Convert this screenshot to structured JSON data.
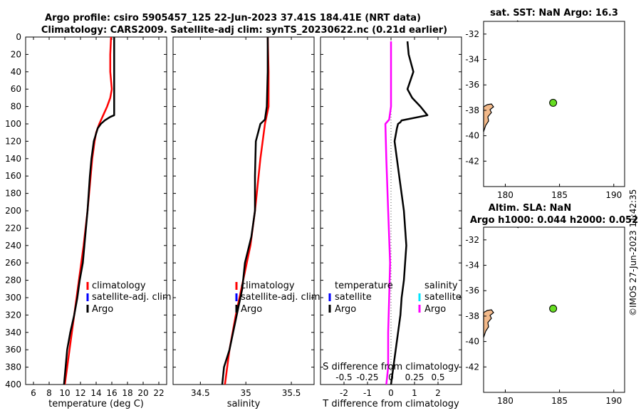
{
  "chart_data": [
    {
      "type": "line",
      "title": [
        "Argo profile: csiro 5905457_125 22-Jun-2023 37.41S 184.41E (NRT data)",
        "Climatology: CARS2009. Satellite-adj clim: synTS_20230622.nc (0.21d earlier)"
      ],
      "xlabel": "temperature (deg C)",
      "xlim": [
        5,
        23
      ],
      "ylim": [
        0,
        400
      ],
      "xticks": [
        6,
        8,
        10,
        12,
        14,
        16,
        18,
        20,
        22
      ],
      "yticks": [
        0,
        20,
        40,
        60,
        80,
        100,
        120,
        140,
        160,
        180,
        200,
        220,
        240,
        260,
        280,
        300,
        320,
        340,
        360,
        380,
        400
      ],
      "legend": [
        "climatology",
        "satellite-adj. clim",
        "Argo"
      ],
      "colors": {
        "climatology": "#ff0000",
        "satellite": "#0000ff",
        "argo": "#000000"
      },
      "series": [
        {
          "name": "climatology",
          "depth": [
            0,
            20,
            40,
            60,
            70,
            80,
            90,
            100,
            110,
            120,
            140,
            160,
            200,
            240,
            280,
            320,
            360,
            400
          ],
          "values": [
            15.9,
            15.8,
            15.8,
            16.0,
            15.8,
            15.4,
            14.9,
            14.4,
            14.0,
            13.8,
            13.5,
            13.3,
            12.9,
            12.4,
            11.8,
            11.2,
            10.6,
            10.0
          ]
        },
        {
          "name": "Argo",
          "depth": [
            0,
            20,
            40,
            60,
            80,
            90,
            92,
            96,
            100,
            105,
            120,
            140,
            160,
            200,
            240,
            260,
            280,
            300,
            320,
            340,
            360,
            380,
            400
          ],
          "values": [
            16.3,
            16.3,
            16.3,
            16.3,
            16.3,
            16.3,
            15.8,
            15.1,
            14.6,
            14.2,
            13.7,
            13.4,
            13.2,
            12.9,
            12.5,
            12.3,
            11.9,
            11.6,
            11.2,
            10.7,
            10.3,
            10.1,
            9.9
          ]
        }
      ]
    },
    {
      "type": "line",
      "xlabel": "salinity",
      "xlim": [
        34.2,
        35.75
      ],
      "ylim": [
        0,
        400
      ],
      "xticks": [
        34.5,
        35,
        35.5
      ],
      "xtick_labels": [
        "34.5",
        "35",
        "35.5"
      ],
      "legend": [
        "climatology",
        "satellite-adj. clim",
        "Argo"
      ],
      "series": [
        {
          "name": "climatology",
          "depth": [
            0,
            40,
            80,
            100,
            140,
            200,
            240,
            280,
            320,
            360,
            400
          ],
          "values": [
            35.24,
            35.25,
            35.25,
            35.21,
            35.16,
            35.1,
            35.05,
            34.97,
            34.89,
            34.82,
            34.77
          ]
        },
        {
          "name": "Argo",
          "depth": [
            0,
            40,
            80,
            95,
            100,
            120,
            160,
            200,
            230,
            260,
            290,
            320,
            340,
            360,
            380,
            400
          ],
          "values": [
            35.24,
            35.24,
            35.23,
            35.21,
            35.16,
            35.11,
            35.1,
            35.1,
            35.06,
            34.99,
            34.96,
            34.9,
            34.86,
            34.82,
            34.76,
            34.74
          ]
        }
      ]
    },
    {
      "type": "line",
      "xlabel": "T difference from climatology",
      "top_axis_label": "S difference from climatology",
      "xlim": [
        -3,
        3
      ],
      "ylim": [
        0,
        400
      ],
      "xticks": [
        -2,
        -1,
        0,
        1,
        2
      ],
      "top_xticks": [
        -0.5,
        -0.25,
        0,
        0.25,
        0.5
      ],
      "top_xtick_labels": [
        "-0.5",
        "-0.25",
        "0",
        "0.25",
        "0.5"
      ],
      "legend_temperature": [
        "temperature",
        "satellite",
        "Argo"
      ],
      "legend_salinity": [
        "salinity",
        "satellite",
        "Argo"
      ],
      "series": [
        {
          "name": "T Argo",
          "depth": [
            5,
            20,
            40,
            60,
            70,
            80,
            90,
            96,
            98,
            100,
            105,
            120,
            160,
            200,
            240,
            260,
            280,
            300,
            320,
            340,
            360,
            380,
            400
          ],
          "values": [
            0.7,
            0.75,
            0.95,
            0.7,
            0.9,
            1.25,
            1.55,
            0.45,
            0.4,
            0.3,
            0.25,
            0.15,
            0.35,
            0.55,
            0.65,
            0.6,
            0.55,
            0.45,
            0.4,
            0.3,
            0.2,
            0.1,
            0.0
          ]
        },
        {
          "name": "S Argo",
          "depth": [
            5,
            40,
            80,
            95,
            100,
            140,
            200,
            260,
            300,
            340,
            380,
            400
          ],
          "values": [
            0.0,
            0.0,
            0.0,
            -0.02,
            -0.06,
            -0.05,
            -0.03,
            -0.01,
            -0.02,
            -0.03,
            -0.03,
            -0.05
          ]
        }
      ]
    },
    {
      "type": "scatter",
      "title": "sat. SST: NaN Argo: 16.3",
      "xlim": [
        178,
        191
      ],
      "ylim": [
        -44,
        -31
      ],
      "xticks": [
        180,
        185,
        190
      ],
      "yticks": [
        -32,
        -34,
        -36,
        -38,
        -40,
        -42
      ],
      "point": {
        "lon": 184.41,
        "lat": -37.41
      }
    },
    {
      "type": "scatter",
      "title": [
        "Altim. SLA: NaN",
        "Argo h1000: 0.044 h2000: 0.052"
      ],
      "xlim": [
        178,
        191
      ],
      "ylim": [
        -44,
        -31
      ],
      "xticks": [
        180,
        185,
        190
      ],
      "yticks": [
        -32,
        -34,
        -36,
        -38,
        -40,
        -42
      ],
      "point": {
        "lon": 184.41,
        "lat": -37.41
      }
    }
  ],
  "credit": "©IMOS 27-Jun-2023 11:42:35"
}
